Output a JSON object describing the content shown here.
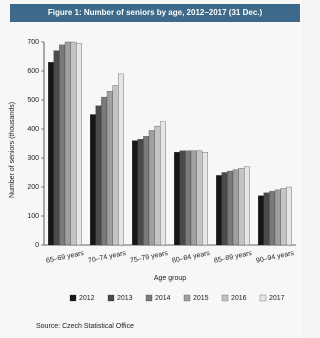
{
  "chart_data": {
    "type": "bar",
    "title": "Figure 1: Number of seniors by age, 2012–2017 (31 Dec.)",
    "y_label": "Number of seniors (thousands)",
    "x_label": "Age group",
    "source": "Source: Czech Statistical Office",
    "categories": [
      "65–69 years",
      "70–74 years",
      "75–79 years",
      "80–84 years",
      "85–89 years",
      "90–94 years"
    ],
    "series": [
      {
        "name": "2012",
        "color": "#161616",
        "values": [
          630,
          450,
          360,
          320,
          240,
          170
        ]
      },
      {
        "name": "2013",
        "color": "#4a4a4a",
        "values": [
          670,
          480,
          365,
          325,
          250,
          180
        ]
      },
      {
        "name": "2014",
        "color": "#7a7a7a",
        "values": [
          690,
          510,
          375,
          325,
          255,
          185
        ]
      },
      {
        "name": "2015",
        "color": "#a0a0a0",
        "values": [
          700,
          530,
          395,
          325,
          260,
          190
        ]
      },
      {
        "name": "2016",
        "color": "#c4c4c4",
        "values": [
          700,
          550,
          410,
          325,
          265,
          195
        ]
      },
      {
        "name": "2017",
        "color": "#e6e6e6",
        "values": [
          695,
          590,
          425,
          320,
          270,
          200
        ]
      }
    ],
    "ylim": [
      0,
      700
    ],
    "yticks": [
      0,
      100,
      200,
      300,
      400,
      500,
      600,
      700
    ],
    "grid": false
  }
}
